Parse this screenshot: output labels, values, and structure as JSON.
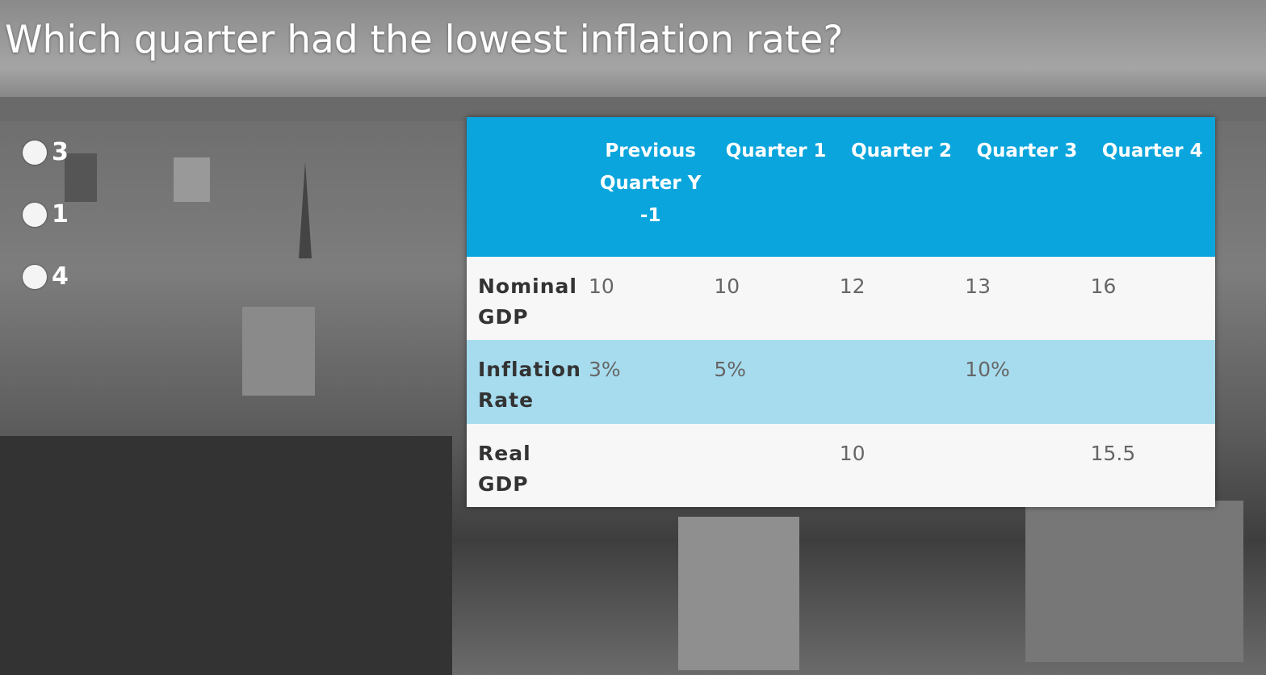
{
  "question": "Which quarter had the lowest inflation rate?",
  "options": [
    "3",
    "1",
    "4"
  ],
  "table": {
    "columns": [
      null,
      "Previous Quarter Y -1",
      "Quarter 1",
      "Quarter 2",
      "Quarter 3",
      "Quarter 4"
    ],
    "rows": [
      [
        "Nominal GDP",
        "10",
        "10",
        "12",
        "13",
        "16"
      ],
      [
        "Inflation Rate",
        "3%",
        "5%",
        null,
        "10%",
        null
      ],
      [
        "Real GDP",
        null,
        null,
        "10",
        null,
        "15.5"
      ]
    ]
  }
}
